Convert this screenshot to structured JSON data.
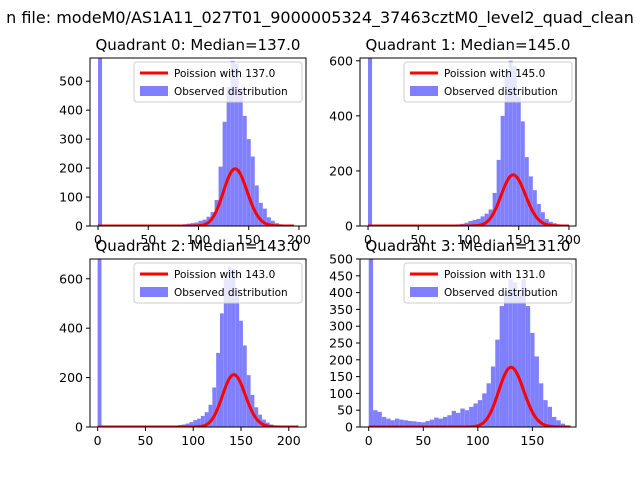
{
  "figure": {
    "suptitle": "n file: modeM0/AS1A11_027T01_9000005324_37463cztM0_level2_quad_clean"
  },
  "colors": {
    "histogram": "#8080ff",
    "poisson_line": "#ff0000",
    "axes": "#000000",
    "background": "#ffffff"
  },
  "chart_data": [
    {
      "type": "bar",
      "title": "Quadrant 0: Median=137.0",
      "xlim": [
        -8,
        207
      ],
      "ylim": [
        0,
        580
      ],
      "xticks": [
        0,
        50,
        100,
        150,
        200
      ],
      "yticks": [
        0,
        100,
        200,
        300,
        400,
        500
      ],
      "legend": {
        "placement": "top-right",
        "line_label": "Poission with 137.0",
        "hist_label": "Observed distribution"
      },
      "bin_width": 4,
      "hist_x": [
        0,
        80,
        84,
        88,
        92,
        96,
        100,
        104,
        108,
        112,
        116,
        120,
        124,
        128,
        132,
        136,
        140,
        144,
        148,
        152,
        156,
        160,
        164,
        168,
        172,
        176,
        180,
        184,
        188
      ],
      "hist_y": [
        580,
        5,
        6,
        8,
        10,
        12,
        18,
        22,
        32,
        48,
        90,
        205,
        360,
        480,
        570,
        560,
        470,
        380,
        300,
        240,
        140,
        80,
        60,
        30,
        18,
        10,
        6,
        4,
        2
      ],
      "poisson_mean": 137.0,
      "poisson_scale": 5800,
      "poisson_xrange": [
        0,
        195
      ]
    },
    {
      "type": "bar",
      "title": "Quadrant 1: Median=145.0",
      "xlim": [
        -8,
        207
      ],
      "ylim": [
        0,
        610
      ],
      "xticks": [
        0,
        50,
        100,
        150,
        200
      ],
      "yticks": [
        0,
        200,
        400,
        600
      ],
      "legend": {
        "placement": "top-right",
        "line_label": "Poission with 145.0",
        "hist_label": "Observed distribution"
      },
      "bin_width": 4,
      "hist_x": [
        0,
        84,
        88,
        92,
        96,
        100,
        104,
        108,
        112,
        116,
        120,
        124,
        128,
        132,
        136,
        140,
        144,
        148,
        152,
        156,
        160,
        164,
        168,
        172,
        176,
        180,
        184,
        188,
        192,
        196
      ],
      "hist_y": [
        610,
        4,
        6,
        8,
        12,
        18,
        22,
        26,
        35,
        45,
        60,
        120,
        240,
        400,
        560,
        600,
        580,
        470,
        380,
        250,
        180,
        130,
        80,
        50,
        25,
        15,
        10,
        6,
        4,
        2
      ],
      "poisson_mean": 145.0,
      "poisson_scale": 5600,
      "poisson_xrange": [
        0,
        200
      ]
    },
    {
      "type": "bar",
      "title": "Quadrant 2: Median=143.0",
      "xlim": [
        -8,
        218
      ],
      "ylim": [
        0,
        680
      ],
      "xticks": [
        0,
        50,
        100,
        150,
        200
      ],
      "yticks": [
        0,
        200,
        400,
        600
      ],
      "legend": {
        "placement": "top-right",
        "line_label": "Poission with 143.0",
        "hist_label": "Observed distribution"
      },
      "bin_width": 4,
      "hist_x": [
        0,
        80,
        84,
        88,
        92,
        96,
        100,
        104,
        108,
        112,
        116,
        120,
        124,
        128,
        132,
        136,
        140,
        144,
        148,
        152,
        156,
        160,
        164,
        168,
        172,
        176,
        180,
        184,
        188,
        192,
        196,
        200
      ],
      "hist_y": [
        680,
        6,
        8,
        10,
        14,
        20,
        28,
        34,
        45,
        60,
        90,
        160,
        300,
        460,
        600,
        650,
        640,
        560,
        430,
        330,
        210,
        130,
        80,
        50,
        30,
        18,
        10,
        6,
        4,
        3,
        2,
        1
      ],
      "poisson_mean": 143.0,
      "poisson_scale": 6350,
      "poisson_xrange": [
        0,
        210
      ]
    },
    {
      "type": "bar",
      "title": "Quadrant 3: Median=131.0",
      "xlim": [
        -8,
        190
      ],
      "ylim": [
        0,
        500
      ],
      "xticks": [
        0,
        50,
        100,
        150
      ],
      "yticks": [
        0,
        50,
        100,
        150,
        200,
        250,
        300,
        350,
        400,
        450,
        500
      ],
      "legend": {
        "placement": "top-right",
        "line_label": "Poission with 131.0",
        "hist_label": "Observed distribution"
      },
      "bin_width": 4,
      "hist_x": [
        0,
        4,
        8,
        12,
        16,
        20,
        24,
        28,
        32,
        36,
        40,
        44,
        48,
        52,
        56,
        60,
        64,
        68,
        72,
        76,
        80,
        84,
        88,
        92,
        96,
        100,
        104,
        108,
        112,
        116,
        120,
        124,
        128,
        132,
        136,
        140,
        144,
        148,
        152,
        156,
        160,
        164,
        168,
        172,
        176,
        180
      ],
      "hist_y": [
        500,
        50,
        45,
        30,
        25,
        20,
        25,
        22,
        20,
        18,
        17,
        15,
        14,
        18,
        22,
        28,
        25,
        30,
        35,
        48,
        42,
        55,
        50,
        60,
        70,
        80,
        100,
        130,
        180,
        260,
        360,
        400,
        440,
        430,
        400,
        440,
        360,
        280,
        210,
        130,
        80,
        60,
        30,
        20,
        10,
        5
      ],
      "poisson_mean": 131.0,
      "poisson_scale": 5100,
      "poisson_xrange": [
        0,
        185
      ]
    }
  ]
}
